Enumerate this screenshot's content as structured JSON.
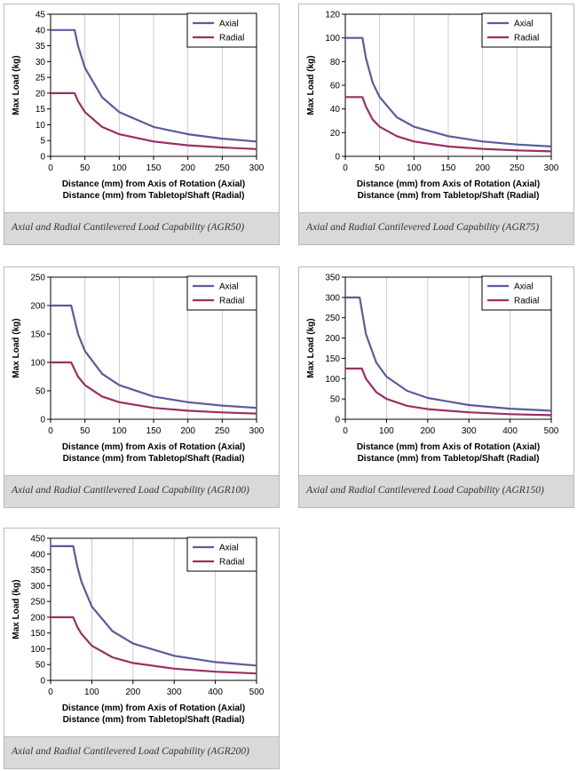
{
  "colors": {
    "axial": "#5b5b9c",
    "radial": "#9b2f63"
  },
  "chart_data": [
    {
      "type": "line",
      "caption": "Axial and Radial Cantilevered Load Capability (AGR50)",
      "xlabel": [
        "Distance (mm) from Axis of Rotation (Axial)",
        "Distance (mm) from Tabletop/Shaft (Radial)"
      ],
      "ylabel": "Max Load (kg)",
      "xlim": [
        0,
        300
      ],
      "ylim": [
        0,
        45
      ],
      "xticks": [
        0,
        50,
        100,
        150,
        200,
        250,
        300
      ],
      "yticks": [
        0,
        5,
        10,
        15,
        20,
        25,
        30,
        35,
        40,
        45
      ],
      "legend": "top-right",
      "series": [
        {
          "name": "Axial",
          "values": [
            [
              0,
              40
            ],
            [
              35,
              40
            ],
            [
              40,
              35
            ],
            [
              50,
              28
            ],
            [
              75,
              18.7
            ],
            [
              100,
              14
            ],
            [
              150,
              9.3
            ],
            [
              200,
              7
            ],
            [
              250,
              5.6
            ],
            [
              300,
              4.7
            ]
          ]
        },
        {
          "name": "Radial",
          "values": [
            [
              0,
              20
            ],
            [
              35,
              20
            ],
            [
              40,
              17.5
            ],
            [
              50,
              14
            ],
            [
              75,
              9.3
            ],
            [
              100,
              7
            ],
            [
              150,
              4.7
            ],
            [
              200,
              3.5
            ],
            [
              250,
              2.8
            ],
            [
              300,
              2.3
            ]
          ]
        }
      ]
    },
    {
      "type": "line",
      "caption": "Axial and Radial Cantilevered Load Capability (AGR75)",
      "xlabel": [
        "Distance (mm) from Axis of Rotation (Axial)",
        "Distance (mm) from Tabletop/Shaft (Radial)"
      ],
      "ylabel": "Max Load (kg)",
      "xlim": [
        0,
        300
      ],
      "ylim": [
        0,
        120
      ],
      "xticks": [
        0,
        50,
        100,
        150,
        200,
        250,
        300
      ],
      "yticks": [
        0,
        20,
        40,
        60,
        80,
        100,
        120
      ],
      "legend": "top-right",
      "series": [
        {
          "name": "Axial",
          "values": [
            [
              0,
              100
            ],
            [
              25,
              100
            ],
            [
              30,
              83
            ],
            [
              40,
              62
            ],
            [
              50,
              50
            ],
            [
              75,
              33
            ],
            [
              100,
              25
            ],
            [
              150,
              17
            ],
            [
              200,
              12.5
            ],
            [
              250,
              10
            ],
            [
              300,
              8.3
            ]
          ]
        },
        {
          "name": "Radial",
          "values": [
            [
              0,
              50
            ],
            [
              25,
              50
            ],
            [
              30,
              42
            ],
            [
              40,
              31
            ],
            [
              50,
              25
            ],
            [
              75,
              17
            ],
            [
              100,
              12.5
            ],
            [
              150,
              8.3
            ],
            [
              200,
              6.3
            ],
            [
              250,
              5
            ],
            [
              300,
              4.2
            ]
          ]
        }
      ]
    },
    {
      "type": "line",
      "caption": "Axial and Radial Cantilevered Load Capability (AGR100)",
      "xlabel": [
        "Distance (mm) from Axis of Rotation (Axial)",
        "Distance (mm) from Tabletop/Shaft (Radial)"
      ],
      "ylabel": "Max Load (kg)",
      "xlim": [
        0,
        300
      ],
      "ylim": [
        0,
        250
      ],
      "xticks": [
        0,
        50,
        100,
        150,
        200,
        250,
        300
      ],
      "yticks": [
        0,
        50,
        100,
        150,
        200,
        250
      ],
      "legend": "top-right",
      "series": [
        {
          "name": "Axial",
          "values": [
            [
              0,
              200
            ],
            [
              30,
              200
            ],
            [
              40,
              150
            ],
            [
              50,
              120
            ],
            [
              75,
              80
            ],
            [
              100,
              60
            ],
            [
              150,
              40
            ],
            [
              200,
              30
            ],
            [
              250,
              24
            ],
            [
              300,
              20
            ]
          ]
        },
        {
          "name": "Radial",
          "values": [
            [
              0,
              100
            ],
            [
              30,
              100
            ],
            [
              40,
              75
            ],
            [
              50,
              60
            ],
            [
              75,
              40
            ],
            [
              100,
              30
            ],
            [
              150,
              20
            ],
            [
              200,
              15
            ],
            [
              250,
              12
            ],
            [
              300,
              10
            ]
          ]
        }
      ]
    },
    {
      "type": "line",
      "caption": "Axial and Radial Cantilevered Load Capability (AGR150)",
      "xlabel": [
        "Distance (mm) from Axis of Rotation (Axial)",
        "Distance (mm) from Tabletop/Shaft (Radial)"
      ],
      "ylabel": "Max Load (kg)",
      "xlim": [
        0,
        500
      ],
      "ylim": [
        0,
        350
      ],
      "xticks": [
        0,
        100,
        200,
        300,
        400,
        500
      ],
      "yticks": [
        0,
        50,
        100,
        150,
        200,
        250,
        300,
        350
      ],
      "legend": "top-right",
      "series": [
        {
          "name": "Axial",
          "values": [
            [
              0,
              300
            ],
            [
              35,
              300
            ],
            [
              50,
              210
            ],
            [
              75,
              140
            ],
            [
              100,
              105
            ],
            [
              150,
              70
            ],
            [
              200,
              52.5
            ],
            [
              300,
              35
            ],
            [
              400,
              26
            ],
            [
              500,
              21
            ]
          ]
        },
        {
          "name": "Radial",
          "values": [
            [
              0,
              125
            ],
            [
              40,
              125
            ],
            [
              50,
              100
            ],
            [
              75,
              67
            ],
            [
              100,
              50
            ],
            [
              150,
              33
            ],
            [
              200,
              25
            ],
            [
              300,
              17
            ],
            [
              400,
              12.5
            ],
            [
              500,
              10
            ]
          ]
        }
      ]
    },
    {
      "type": "line",
      "caption": "Axial and Radial Cantilevered Load Capability (AGR200)",
      "xlabel": [
        "Distance (mm) from Axis of Rotation (Axial)",
        "Distance (mm) from Tabletop/Shaft (Radial)"
      ],
      "ylabel": "Max Load (kg)",
      "xlim": [
        0,
        500
      ],
      "ylim": [
        0,
        450
      ],
      "xticks": [
        0,
        100,
        200,
        300,
        400,
        500
      ],
      "yticks": [
        0,
        50,
        100,
        150,
        200,
        250,
        300,
        350,
        400,
        450
      ],
      "legend": "top-right",
      "series": [
        {
          "name": "Axial",
          "values": [
            [
              0,
              425
            ],
            [
              55,
              425
            ],
            [
              65,
              360
            ],
            [
              75,
              312
            ],
            [
              100,
              234
            ],
            [
              150,
              156
            ],
            [
              200,
              117
            ],
            [
              300,
              78
            ],
            [
              400,
              58
            ],
            [
              500,
              47
            ]
          ]
        },
        {
          "name": "Radial",
          "values": [
            [
              0,
              200
            ],
            [
              55,
              200
            ],
            [
              65,
              169
            ],
            [
              75,
              147
            ],
            [
              100,
              110
            ],
            [
              150,
              73
            ],
            [
              200,
              55
            ],
            [
              300,
              37
            ],
            [
              400,
              27.5
            ],
            [
              500,
              22
            ]
          ]
        }
      ]
    }
  ]
}
